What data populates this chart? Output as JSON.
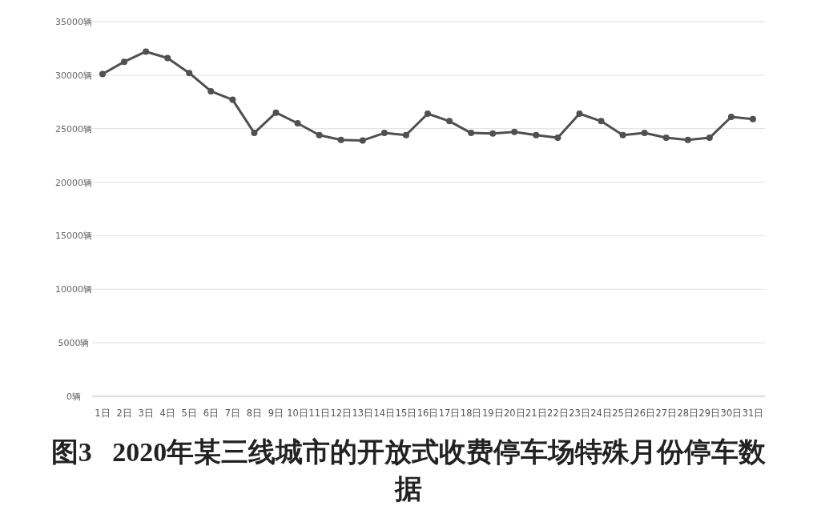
{
  "chart_data": {
    "type": "line",
    "title": "图3   2020年某三线城市的开放式收费停车场特殊月份停车数据",
    "categories": [
      "1日",
      "2日",
      "3日",
      "4日",
      "5日",
      "6日",
      "7日",
      "8日",
      "9日",
      "10日",
      "11日",
      "12日",
      "13日",
      "14日",
      "15日",
      "16日",
      "17日",
      "18日",
      "19日",
      "20日",
      "21日",
      "22日",
      "23日",
      "24日",
      "25日",
      "26日",
      "27日",
      "28日",
      "29日",
      "30日",
      "31日"
    ],
    "series": [
      {
        "color": "#505050",
        "values": [
          30100,
          31250,
          32200,
          31600,
          30200,
          28500,
          27700,
          24600,
          26500,
          25500,
          24400,
          23950,
          23900,
          24600,
          24400,
          26400,
          25700,
          24600,
          24550,
          24700,
          24400,
          24150,
          26400,
          25700,
          24400,
          24600,
          24150,
          23950,
          24150,
          26100,
          25900
        ]
      }
    ],
    "ylim": [
      0,
      35000
    ],
    "yticks": [
      {
        "value": 0,
        "label": "0辆"
      },
      {
        "value": 5000,
        "label": "5000辆"
      },
      {
        "value": 10000,
        "label": "10000辆"
      },
      {
        "value": 15000,
        "label": "15000辆"
      },
      {
        "value": 20000,
        "label": "20000辆"
      },
      {
        "value": 25000,
        "label": "25000辆"
      },
      {
        "value": 30000,
        "label": "30000辆"
      },
      {
        "value": 35000,
        "label": "35000辆"
      }
    ],
    "grid": "y",
    "marker": "circle",
    "line_style": "solid"
  }
}
